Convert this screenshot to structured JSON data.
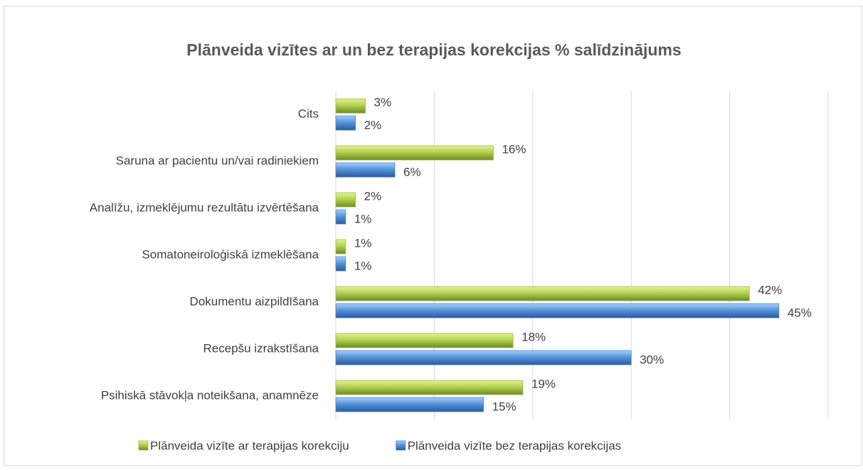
{
  "chart_data": {
    "type": "hbar",
    "title": "Plānveida vizītes ar un bez terapijas korekcijas % salīdzinājums",
    "categories": [
      "Cits",
      "Saruna ar pacientu un/vai radiniekiem",
      "Analīžu, izmeklējumu rezultātu izvērtēšana",
      "Somatoneiroloģiskā izmeklēšana",
      "Dokumentu aizpildīšana",
      "Recepšu izrakstīšana",
      "Psihiskā stāvokļa noteikšana, anamnēze"
    ],
    "series": [
      {
        "name": "Plānveida vizīte ar terapijas korekciju",
        "color": "#9bbb3b",
        "values": [
          3,
          16,
          2,
          1,
          42,
          18,
          19
        ],
        "value_labels": [
          "3%",
          "16%",
          "2%",
          "1%",
          "42%",
          "18%",
          "19%"
        ]
      },
      {
        "name": "Plānveida vizīte bez terapijas korekcijas",
        "color": "#4a86d0",
        "values": [
          2,
          6,
          1,
          1,
          45,
          30,
          15
        ],
        "value_labels": [
          "2%",
          "6%",
          "1%",
          "1%",
          "45%",
          "30%",
          "15%"
        ]
      }
    ],
    "xlim": [
      0,
      50
    ],
    "xticks": [
      0,
      10,
      20,
      30,
      40,
      50
    ],
    "grid": true,
    "legend": "bottom"
  }
}
